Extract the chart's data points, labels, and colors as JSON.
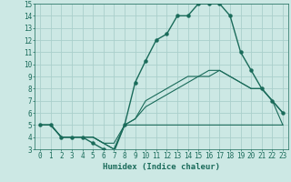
{
  "xlabel": "Humidex (Indice chaleur)",
  "xlim": [
    -0.5,
    23.5
  ],
  "ylim": [
    3,
    15
  ],
  "xticks": [
    0,
    1,
    2,
    3,
    4,
    5,
    6,
    7,
    8,
    9,
    10,
    11,
    12,
    13,
    14,
    15,
    16,
    17,
    18,
    19,
    20,
    21,
    22,
    23
  ],
  "yticks": [
    3,
    4,
    5,
    6,
    7,
    8,
    9,
    10,
    11,
    12,
    13,
    14,
    15
  ],
  "background_color": "#cce8e4",
  "grid_color": "#aacfcb",
  "line_color": "#1a6b5a",
  "series": [
    {
      "x": [
        0,
        1,
        2,
        3,
        4,
        5,
        6,
        7,
        8,
        9,
        10,
        11,
        12,
        13,
        14,
        15,
        16,
        17,
        18,
        19,
        20,
        21,
        22,
        23
      ],
      "y": [
        5,
        5,
        4,
        4,
        4,
        4,
        3.5,
        3.5,
        5,
        5,
        5,
        5,
        5,
        5,
        5,
        5,
        5,
        5,
        5,
        5,
        5,
        5,
        5,
        5
      ],
      "has_markers": false,
      "lw": 0.8
    },
    {
      "x": [
        0,
        1,
        2,
        3,
        4,
        5,
        6,
        7,
        8,
        9,
        10,
        11,
        12,
        13,
        14,
        15,
        16,
        17,
        18,
        19,
        20,
        21,
        22,
        23
      ],
      "y": [
        5,
        5,
        4,
        4,
        4,
        4,
        3.5,
        3,
        5,
        5.5,
        6.5,
        7,
        7.5,
        8,
        8.5,
        9,
        9,
        9.5,
        9,
        8.5,
        8,
        8,
        7,
        6
      ],
      "has_markers": false,
      "lw": 0.8
    },
    {
      "x": [
        0,
        1,
        2,
        3,
        4,
        5,
        6,
        7,
        8,
        9,
        10,
        11,
        12,
        13,
        14,
        15,
        16,
        17,
        18,
        19,
        20,
        21,
        22,
        23
      ],
      "y": [
        5,
        5,
        4,
        4,
        4,
        4,
        3.5,
        3,
        5,
        5.5,
        7,
        7.5,
        8,
        8.5,
        9,
        9,
        9.5,
        9.5,
        9,
        8.5,
        8,
        8,
        7,
        5
      ],
      "has_markers": false,
      "lw": 0.8
    },
    {
      "x": [
        0,
        1,
        2,
        3,
        4,
        5,
        6,
        7,
        8,
        9,
        10,
        11,
        12,
        13,
        14,
        15,
        16,
        17,
        18,
        19,
        20,
        21,
        22,
        23
      ],
      "y": [
        5,
        5,
        4,
        4,
        4,
        3.5,
        3,
        2.8,
        5,
        8.5,
        10.3,
        12,
        12.5,
        14,
        14,
        15,
        15,
        15,
        14,
        11,
        9.5,
        8,
        7,
        6
      ],
      "has_markers": true,
      "lw": 1.0
    }
  ]
}
